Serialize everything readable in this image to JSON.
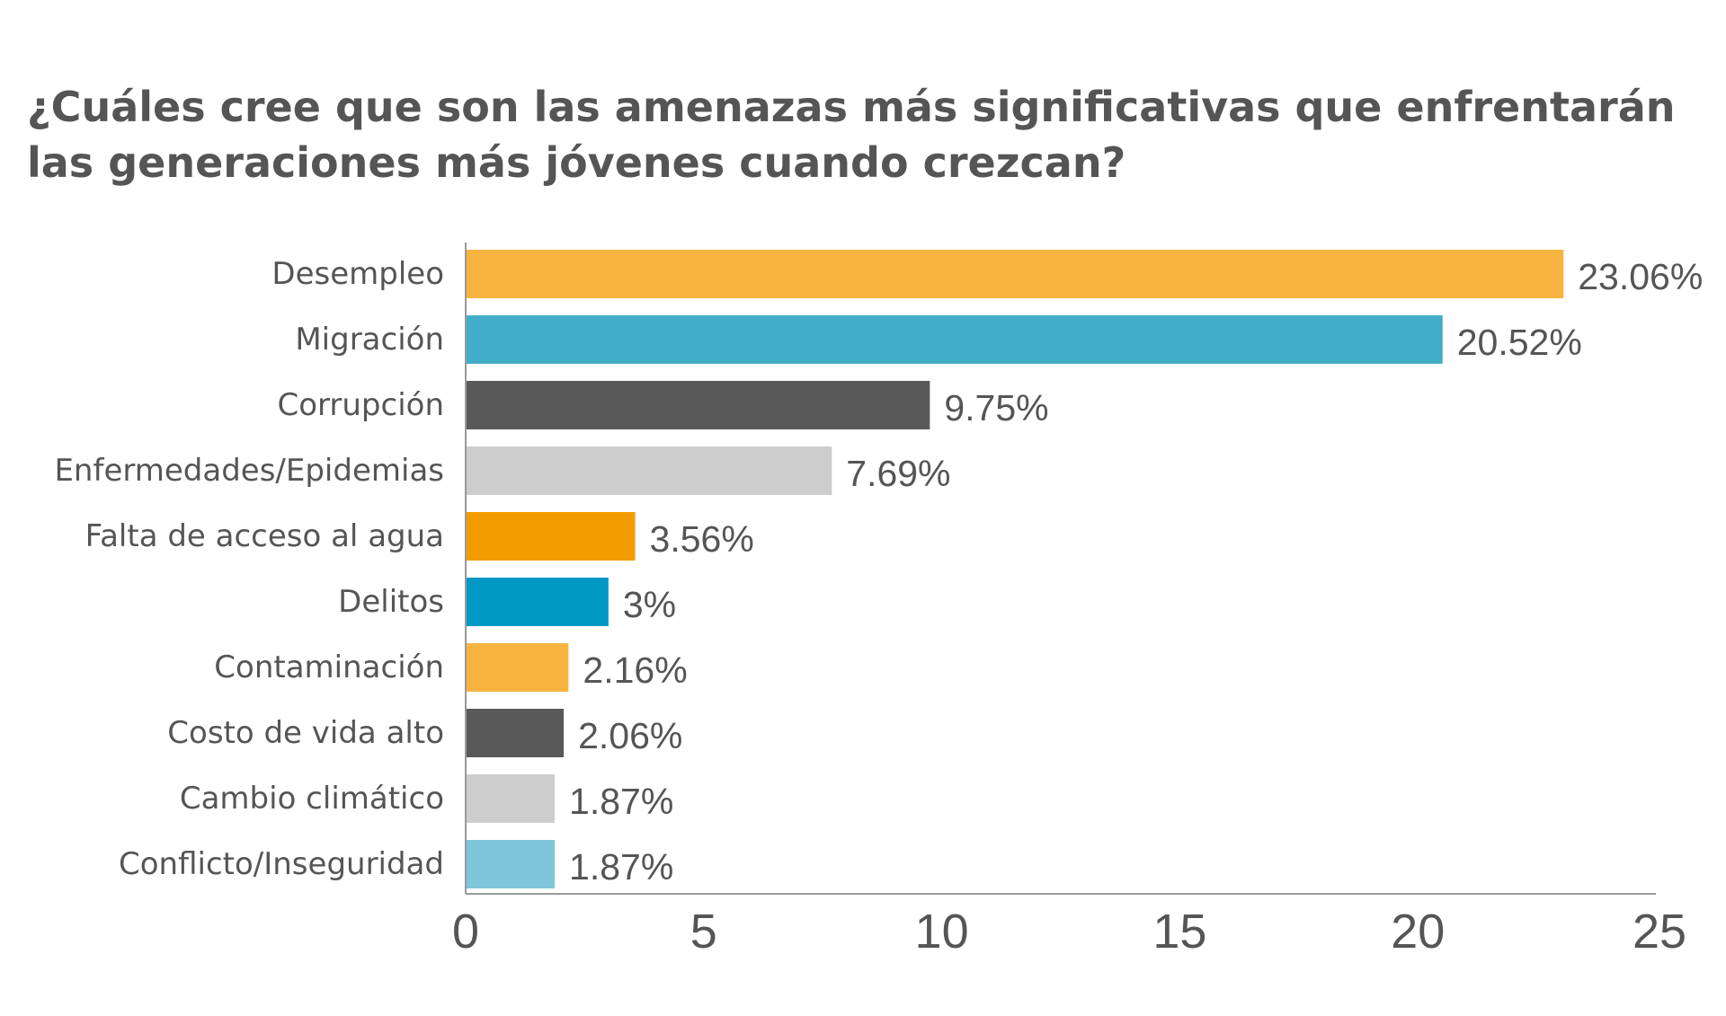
{
  "chart_data": {
    "type": "bar",
    "orientation": "horizontal",
    "title": "¿Cuáles cree que son las amenazas más significativas que enfrentarán las generaciones más jóvenes cuando crezcan?",
    "categories": [
      "Desempleo",
      "Migración",
      "Corrupción",
      "Enfermedades/Epidemias",
      "Falta de acceso al agua",
      "Delitos",
      "Contaminación",
      "Costo de vida alto",
      "Cambio climático",
      "Conflicto/Inseguridad"
    ],
    "values": [
      23.06,
      20.52,
      9.75,
      7.69,
      3.56,
      3,
      2.16,
      2.06,
      1.87,
      1.87
    ],
    "value_labels": [
      "23.06%",
      "20.52%",
      "9.75%",
      "7.69%",
      "3.56%",
      "3%",
      "2.16%",
      "2.06%",
      "1.87%",
      "1.87%"
    ],
    "colors": [
      "#F7B540",
      "#41ADC9",
      "#595959",
      "#CDCDCD",
      "#F39C00",
      "#0099C6",
      "#F7B540",
      "#595959",
      "#CDCDCD",
      "#7FC6DB"
    ],
    "xlim": [
      0,
      25
    ],
    "xticks": [
      "0",
      "5",
      "10",
      "15",
      "20",
      "25"
    ],
    "grid": false,
    "legend": "none",
    "xlabel": "",
    "ylabel": ""
  }
}
